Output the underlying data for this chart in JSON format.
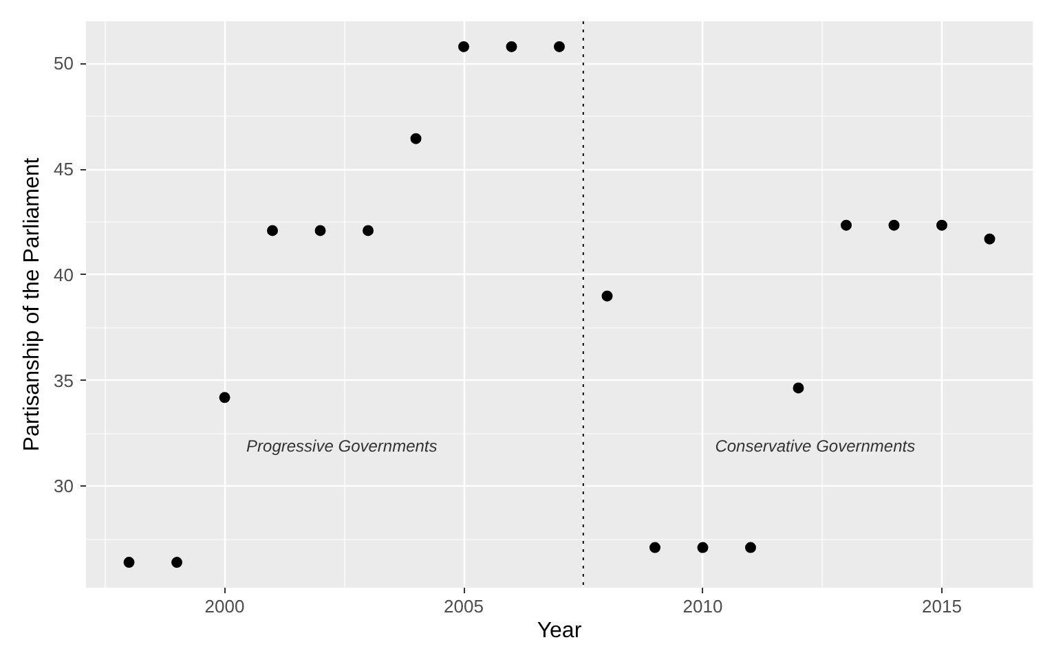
{
  "chart_data": {
    "type": "scatter",
    "xlabel": "Year",
    "ylabel": "Partisanship of the Parliament",
    "x": [
      1998,
      1999,
      2000,
      2001,
      2002,
      2003,
      2004,
      2005,
      2006,
      2007,
      2008,
      2009,
      2010,
      2011,
      2012,
      2013,
      2014,
      2015,
      2016
    ],
    "values": [
      26.4,
      26.4,
      34.2,
      42.1,
      42.1,
      42.1,
      46.45,
      50.8,
      50.8,
      50.8,
      39.0,
      27.1,
      27.1,
      27.1,
      34.65,
      42.35,
      42.35,
      42.35,
      41.7
    ],
    "color": "#000000",
    "marker": "circle",
    "xlim": [
      1997.1,
      2016.9
    ],
    "ylim": [
      25.2,
      52.0
    ],
    "xticks": [
      2000,
      2005,
      2010,
      2015
    ],
    "yticks": [
      30,
      35,
      40,
      45,
      50
    ],
    "grid": true,
    "ref_lines": [
      {
        "axis": "x",
        "value": 2007.5,
        "label": null,
        "color": "#000000",
        "line_style": "dotted"
      }
    ],
    "annotations": [
      "Progressive Governments",
      "Conservative Governments"
    ]
  }
}
